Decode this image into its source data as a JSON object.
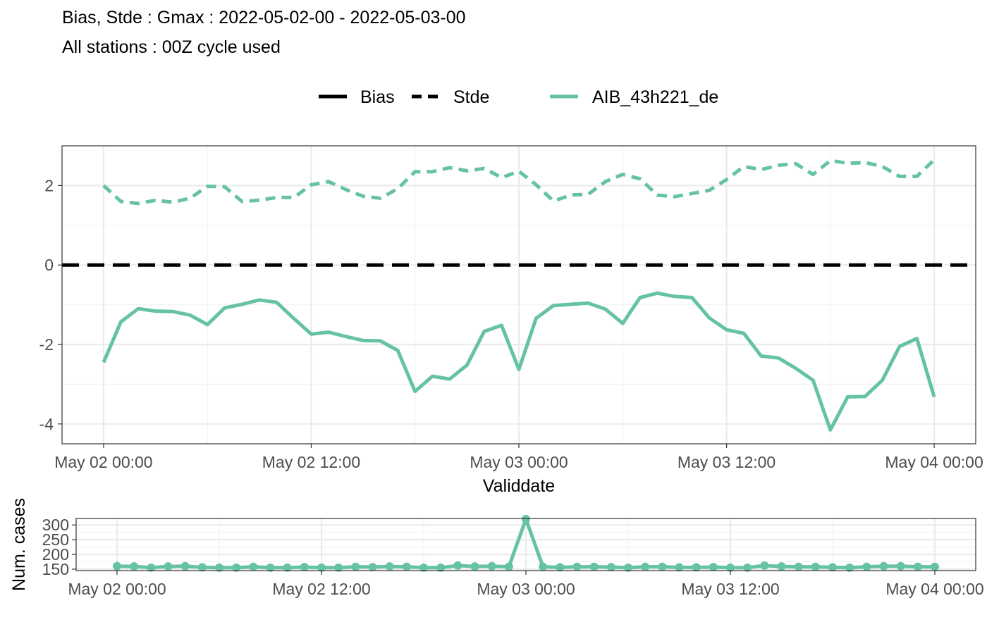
{
  "title": "Bias, Stde : Gmax : 2022-05-02-00 - 2022-05-03-00",
  "subtitle": "All stations : 00Z cycle used",
  "legend": {
    "linetype_items": [
      {
        "label": "Bias"
      },
      {
        "label": "Stde"
      }
    ],
    "color_items": [
      {
        "label": "AIB_43h221_de",
        "color": "#66C2A5"
      }
    ]
  },
  "chart_data": [
    {
      "type": "line",
      "xlabel": "Validdate",
      "ylabel": "",
      "x_ticks": [
        "May 02 00:00",
        "May 02 12:00",
        "May 03 00:00",
        "May 03 12:00",
        "May 04 00:00"
      ],
      "x_range_hours": [
        -2.4,
        50.4
      ],
      "ylim": [
        -4.5,
        3.0
      ],
      "y_ticks": [
        "-4",
        "-2",
        "0",
        "2"
      ],
      "grid": true,
      "legend_position": "top",
      "reference_line": {
        "y": 0,
        "style": "dashed",
        "color": "#000000"
      },
      "series": [
        {
          "name": "AIB_43h221_de",
          "metric": "Bias",
          "color": "#66C2A5",
          "linetype": "solid",
          "x_hours": [
            0,
            1,
            2,
            3,
            4,
            5,
            6,
            7,
            8,
            9,
            10,
            11,
            12,
            13,
            14,
            15,
            16,
            17,
            18,
            19,
            20,
            21,
            22,
            23,
            24,
            25,
            26,
            27,
            28,
            29,
            30,
            31,
            32,
            33,
            34,
            35,
            36,
            37,
            38,
            39,
            40,
            41,
            42,
            43,
            44,
            45,
            46,
            47,
            48
          ],
          "values": [
            -2.45,
            -1.43,
            -1.1,
            -1.16,
            -1.17,
            -1.26,
            -1.5,
            -1.08,
            -0.99,
            -0.88,
            -0.94,
            -1.35,
            -1.74,
            -1.69,
            -1.8,
            -1.9,
            -1.91,
            -2.15,
            -3.18,
            -2.8,
            -2.87,
            -2.52,
            -1.67,
            -1.52,
            -2.63,
            -1.34,
            -1.02,
            -0.99,
            -0.96,
            -1.11,
            -1.47,
            -0.82,
            -0.71,
            -0.79,
            -0.82,
            -1.33,
            -1.63,
            -1.72,
            -2.29,
            -2.34,
            -2.6,
            -2.9,
            -4.15,
            -3.32,
            -3.31,
            -2.9,
            -2.05,
            -1.85,
            -3.32
          ]
        },
        {
          "name": "AIB_43h221_de",
          "metric": "Stde",
          "color": "#66C2A5",
          "linetype": "dashed",
          "x_hours": [
            0,
            1,
            2,
            3,
            4,
            5,
            6,
            7,
            8,
            9,
            10,
            11,
            12,
            13,
            14,
            15,
            16,
            17,
            18,
            19,
            20,
            21,
            22,
            23,
            24,
            25,
            26,
            27,
            28,
            29,
            30,
            31,
            32,
            33,
            34,
            35,
            36,
            37,
            38,
            39,
            40,
            41,
            42,
            43,
            44,
            45,
            46,
            47,
            48
          ],
          "values": [
            2.0,
            1.6,
            1.55,
            1.63,
            1.58,
            1.68,
            1.98,
            1.97,
            1.6,
            1.63,
            1.7,
            1.7,
            2.02,
            2.1,
            1.9,
            1.73,
            1.68,
            1.92,
            2.35,
            2.35,
            2.45,
            2.37,
            2.43,
            2.2,
            2.36,
            2.02,
            1.61,
            1.76,
            1.78,
            2.1,
            2.28,
            2.17,
            1.76,
            1.72,
            1.8,
            1.88,
            2.15,
            2.48,
            2.4,
            2.51,
            2.55,
            2.28,
            2.63,
            2.56,
            2.58,
            2.48,
            2.23,
            2.23,
            2.65
          ]
        }
      ]
    },
    {
      "type": "line",
      "xlabel": "",
      "ylabel": "Num. cases",
      "x_ticks": [
        "May 02 00:00",
        "May 02 12:00",
        "May 03 00:00",
        "May 03 12:00",
        "May 04 00:00"
      ],
      "x_range_hours": [
        -2.4,
        50.4
      ],
      "ylim": [
        145,
        322
      ],
      "y_ticks": [
        "150",
        "200",
        "250",
        "300"
      ],
      "grid": true,
      "markers": true,
      "series": [
        {
          "name": "AIB_43h221_de",
          "color": "#66C2A5",
          "x_hours": [
            0,
            1,
            2,
            3,
            4,
            5,
            6,
            7,
            8,
            9,
            10,
            11,
            12,
            13,
            14,
            15,
            16,
            17,
            18,
            19,
            20,
            21,
            22,
            23,
            24,
            25,
            26,
            27,
            28,
            29,
            30,
            31,
            32,
            33,
            34,
            35,
            36,
            37,
            38,
            39,
            40,
            41,
            42,
            43,
            44,
            45,
            46,
            47,
            48
          ],
          "values": [
            160,
            159,
            155,
            159,
            160,
            156,
            155,
            155,
            158,
            155,
            155,
            157,
            155,
            155,
            158,
            157,
            159,
            158,
            155,
            155,
            162,
            159,
            160,
            158,
            320,
            158,
            156,
            158,
            158,
            157,
            155,
            158,
            158,
            156,
            156,
            157,
            155,
            155,
            162,
            159,
            158,
            158,
            156,
            155,
            158,
            160,
            160,
            158,
            158
          ]
        }
      ]
    }
  ]
}
